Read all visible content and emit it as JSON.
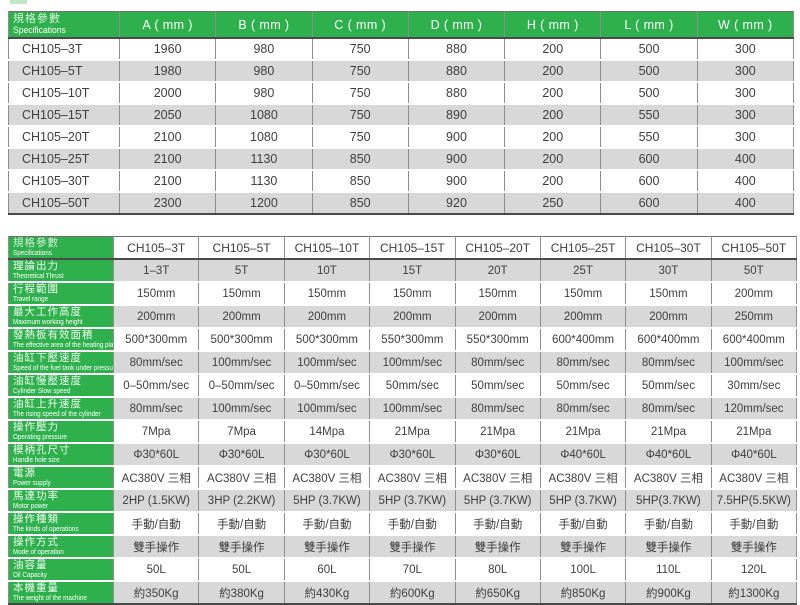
{
  "colors": {
    "green": "#2eb14c",
    "alt_row": "#d8d8d8",
    "border": "#8e8e8e",
    "text": "#3e3e3e"
  },
  "decor": {
    "top_left_chip": "light-green-square"
  },
  "table1": {
    "header": {
      "zh": "規格參數",
      "en": "Specifications"
    },
    "columns": [
      "A ( mm )",
      "B ( mm )",
      "C ( mm )",
      "D ( mm )",
      "H ( mm )",
      "L ( mm )",
      "W ( mm )"
    ],
    "rows": [
      {
        "model": "CH105–3T",
        "values": [
          "1960",
          "980",
          "750",
          "880",
          "200",
          "500",
          "300"
        ]
      },
      {
        "model": "CH105–5T",
        "values": [
          "1980",
          "980",
          "750",
          "880",
          "200",
          "500",
          "300"
        ]
      },
      {
        "model": "CH105–10T",
        "values": [
          "2000",
          "980",
          "750",
          "880",
          "200",
          "500",
          "300"
        ]
      },
      {
        "model": "CH105–15T",
        "values": [
          "2050",
          "1080",
          "750",
          "890",
          "200",
          "550",
          "300"
        ]
      },
      {
        "model": "CH105–20T",
        "values": [
          "2100",
          "1080",
          "750",
          "900",
          "200",
          "550",
          "300"
        ]
      },
      {
        "model": "CH105–25T",
        "values": [
          "2100",
          "1130",
          "850",
          "900",
          "200",
          "600",
          "400"
        ]
      },
      {
        "model": "CH105–30T",
        "values": [
          "2100",
          "1130",
          "850",
          "900",
          "200",
          "600",
          "400"
        ]
      },
      {
        "model": "CH105–50T",
        "values": [
          "2300",
          "1200",
          "850",
          "920",
          "250",
          "600",
          "400"
        ]
      }
    ]
  },
  "table2": {
    "header": {
      "zh": "規格參數",
      "en": "Specifications"
    },
    "columns": [
      "CH105–3T",
      "CH105–5T",
      "CH105–10T",
      "CH105–15T",
      "CH105–20T",
      "CH105–25T",
      "CH105–30T",
      "CH105–50T"
    ],
    "rows": [
      {
        "zh": "理論出力",
        "en": "Theoretical Thrust",
        "values": [
          "1–3T",
          "5T",
          "10T",
          "15T",
          "20T",
          "25T",
          "30T",
          "50T"
        ]
      },
      {
        "zh": "行程範圍",
        "en": "Travel range",
        "values": [
          "150mm",
          "150mm",
          "150mm",
          "150mm",
          "150mm",
          "150mm",
          "150mm",
          "200mm"
        ]
      },
      {
        "zh": "最大工作高度",
        "en": "Maximum working height",
        "values": [
          "200mm",
          "200mm",
          "200mm",
          "200mm",
          "200mm",
          "200mm",
          "200mm",
          "250mm"
        ]
      },
      {
        "zh": "發熱板有效面積",
        "en": "The effective area of the heating plate",
        "values": [
          "500*300mm",
          "500*300mm",
          "500*300mm",
          "550*300mm",
          "550*300mm",
          "600*400mm",
          "600*400mm",
          "600*400mm"
        ]
      },
      {
        "zh": "油缸下壓速度",
        "en": "Speed of the fuel tank under pressure",
        "values": [
          "80mm/sec",
          "100mm/sec",
          "100mm/sec",
          "100mm/sec",
          "80mm/sec",
          "80mm/sec",
          "80mm/sec",
          "100mm/sec"
        ]
      },
      {
        "zh": "油缸慢壓速度",
        "en": "Cylinder Slow speed",
        "values": [
          "0–50mm/sec",
          "0–50mm/sec",
          "0–50mm/sec",
          "50mm/sec",
          "50mm/sec",
          "50mm/sec",
          "50mm/sec",
          "30mm/sec"
        ]
      },
      {
        "zh": "油缸上升速度",
        "en": "The rising speed of the cylinder",
        "values": [
          "80mm/sec",
          "100mm/sec",
          "100mm/sec",
          "100mm/sec",
          "80mm/sec",
          "80mm/sec",
          "80mm/sec",
          "120mm/sec"
        ]
      },
      {
        "zh": "操作壓力",
        "en": "Operating pressure",
        "values": [
          "7Mpa",
          "7Mpa",
          "14Mpa",
          "21Mpa",
          "21Mpa",
          "21Mpa",
          "21Mpa",
          "21Mpa"
        ]
      },
      {
        "zh": "模柄孔尺寸",
        "en": "Handle hole size",
        "values": [
          "Φ30*60L",
          "Φ30*60L",
          "Φ30*60L",
          "Φ30*60L",
          "Φ30*60L",
          "Φ40*60L",
          "Φ40*60L",
          "Φ40*60L"
        ]
      },
      {
        "zh": "電源",
        "en": "Power supply",
        "values": [
          "AC380V 三相",
          "AC380V 三相",
          "AC380V 三相",
          "AC380V 三相",
          "AC380V 三相",
          "AC380V 三相",
          "AC380V 三相",
          "AC380V 三相"
        ]
      },
      {
        "zh": "馬達功率",
        "en": "Motor power",
        "values": [
          "2HP (1.5KW)",
          "3HP (2.2KW)",
          "5HP (3.7KW)",
          "5HP (3.7KW)",
          "5HP (3.7KW)",
          "5HP (3.7KW)",
          "5HP(3.7KW)",
          "7.5HP(5.5KW)"
        ]
      },
      {
        "zh": "操作種類",
        "en": "The kinds of operations",
        "values": [
          "手動/自動",
          "手動/自動",
          "手動/自動",
          "手動/自動",
          "手動/自動",
          "手動/自動",
          "手動/自動",
          "手動/自動"
        ]
      },
      {
        "zh": "操作方式",
        "en": "Mode of operation",
        "values": [
          "雙手操作",
          "雙手操作",
          "雙手操作",
          "雙手操作",
          "雙手操作",
          "雙手操作",
          "雙手操作",
          "雙手操作"
        ]
      },
      {
        "zh": "油容量",
        "en": "Oil Capacity",
        "values": [
          "50L",
          "50L",
          "60L",
          "70L",
          "80L",
          "100L",
          "110L",
          "120L"
        ]
      },
      {
        "zh": "本機重量",
        "en": "The weight of the machine",
        "values": [
          "約350Kg",
          "約380Kg",
          "約430Kg",
          "約600Kg",
          "約650Kg",
          "約850Kg",
          "約900Kg",
          "約1300Kg"
        ]
      }
    ]
  }
}
